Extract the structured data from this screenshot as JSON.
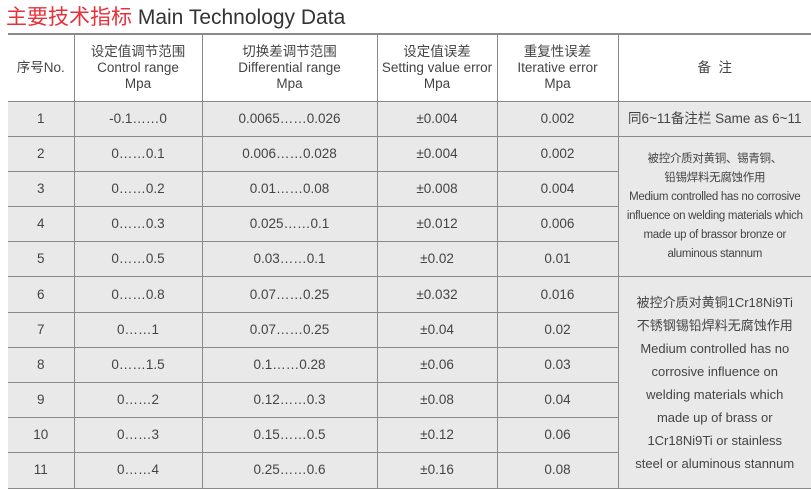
{
  "title": {
    "cn": "主要技术指标",
    "en": "Main Technology Data"
  },
  "headers": {
    "no": "序号No.",
    "control": [
      "设定值调节范围",
      "Control range",
      "Mpa"
    ],
    "differential": [
      "切换差调节范围",
      "Differential range",
      "Mpa"
    ],
    "setting_error": [
      "设定值误差",
      "Setting value error",
      "Mpa"
    ],
    "iterative_error": [
      "重复性误差",
      "Iterative error",
      "Mpa"
    ],
    "remarks": "备  注"
  },
  "rows": [
    {
      "no": "1",
      "control": "-0.1……0",
      "diff": "0.0065……0.026",
      "set_err": "±0.004",
      "iter_err": "0.002"
    },
    {
      "no": "2",
      "control": "0……0.1",
      "diff": "0.006……0.028",
      "set_err": "±0.004",
      "iter_err": "0.002"
    },
    {
      "no": "3",
      "control": "0……0.2",
      "diff": "0.01……0.08",
      "set_err": "±0.008",
      "iter_err": "0.004"
    },
    {
      "no": "4",
      "control": "0……0.3",
      "diff": "0.025……0.1",
      "set_err": "±0.012",
      "iter_err": "0.006"
    },
    {
      "no": "5",
      "control": "0……0.5",
      "diff": "0.03……0.1",
      "set_err": "±0.02",
      "iter_err": "0.01"
    },
    {
      "no": "6",
      "control": "0……0.8",
      "diff": "0.07……0.25",
      "set_err": "±0.032",
      "iter_err": "0.016"
    },
    {
      "no": "7",
      "control": "0……1",
      "diff": "0.07……0.25",
      "set_err": "±0.04",
      "iter_err": "0.02"
    },
    {
      "no": "8",
      "control": "0……1.5",
      "diff": "0.1……0.28",
      "set_err": "±0.06",
      "iter_err": "0.03"
    },
    {
      "no": "9",
      "control": "0……2",
      "diff": "0.12……0.3",
      "set_err": "±0.08",
      "iter_err": "0.04"
    },
    {
      "no": "10",
      "control": "0……3",
      "diff": "0.15……0.5",
      "set_err": "±0.12",
      "iter_err": "0.06"
    },
    {
      "no": "11",
      "control": "0……4",
      "diff": "0.25……0.6",
      "set_err": "±0.16",
      "iter_err": "0.08"
    }
  ],
  "remarks": {
    "r1": "同6~11备注栏 Same as 6~11",
    "r2_5": [
      "被控介质对黄铜、锡青铜、",
      "铅锡焊料无腐蚀作用",
      "Medium controlled has no corrosive",
      "influence on welding materials which",
      "made up of brassor bronze or",
      "aluminous stannum"
    ],
    "r6_11": [
      "被控介质对黄铜1Cr18Ni9Ti",
      "不锈钢锡铅焊料无腐蚀作用",
      "Medium controlled has no",
      "corrosive influence on",
      "welding materials which",
      "made up of brass or",
      "1Cr18Ni9Ti or stainless",
      "steel or aluminous stannum"
    ]
  }
}
